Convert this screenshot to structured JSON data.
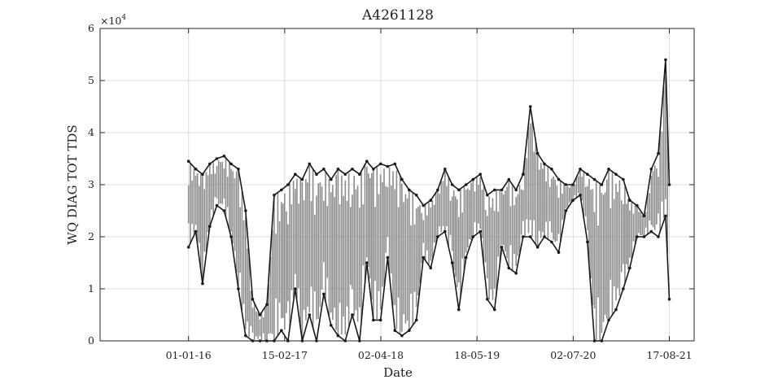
{
  "chart_data": {
    "type": "line",
    "title": "A4261128",
    "xlabel": "Date",
    "ylabel": "WQ DIAG TOT TDS",
    "y_multiplier_label": "×10",
    "y_multiplier_exp": "4",
    "x_tick_labels": [
      "01-01-16",
      "15-02-17",
      "02-04-18",
      "18-05-19",
      "02-07-20",
      "17-08-21"
    ],
    "y_tick_labels": [
      "0",
      "1",
      "2",
      "3",
      "4",
      "5",
      "6"
    ],
    "ylim": [
      0,
      60000
    ],
    "grid": true,
    "line_color": "#1a1a1a",
    "fill_color": "#8c8c8c",
    "series": [
      {
        "x": [
          "2016-01-01",
          "2016-02-01",
          "2016-03-01",
          "2016-04-01",
          "2016-05-01",
          "2016-06-01",
          "2016-07-01",
          "2016-08-01",
          "2016-09-01",
          "2016-10-01",
          "2016-11-01",
          "2016-12-01",
          "2017-01-01",
          "2017-02-01",
          "2017-03-01",
          "2017-04-01",
          "2017-05-01",
          "2017-06-01",
          "2017-07-01",
          "2017-08-01",
          "2017-09-01",
          "2017-10-01",
          "2017-11-01",
          "2017-12-01",
          "2018-01-01",
          "2018-02-01",
          "2018-03-01",
          "2018-04-01",
          "2018-05-01",
          "2018-06-01",
          "2018-07-01",
          "2018-08-01",
          "2018-09-01",
          "2018-10-01",
          "2018-11-01",
          "2018-12-01",
          "2019-01-01",
          "2019-02-01",
          "2019-03-01",
          "2019-04-01",
          "2019-05-01",
          "2019-06-01",
          "2019-07-01",
          "2019-08-01",
          "2019-09-01",
          "2019-10-01",
          "2019-11-01",
          "2019-12-01",
          "2020-01-01",
          "2020-02-01",
          "2020-03-01",
          "2020-04-01",
          "2020-05-01",
          "2020-06-01",
          "2020-07-01",
          "2020-08-01",
          "2020-09-01",
          "2020-10-01",
          "2020-11-01",
          "2020-12-01",
          "2021-01-01",
          "2021-02-01",
          "2021-03-01",
          "2021-04-01",
          "2021-05-01",
          "2021-06-01",
          "2021-07-01",
          "2021-08-01",
          "2021-08-17"
        ],
        "min": [
          18000,
          21000,
          11000,
          22000,
          26000,
          25000,
          20000,
          10000,
          1000,
          0,
          0,
          0,
          0,
          2000,
          0,
          10000,
          0,
          5000,
          0,
          9000,
          3000,
          1000,
          0,
          5000,
          0,
          15000,
          4000,
          4000,
          16000,
          2000,
          1000,
          2000,
          4000,
          16000,
          14000,
          20000,
          21000,
          15000,
          6000,
          16000,
          20000,
          21000,
          8000,
          6000,
          18000,
          14000,
          13000,
          20000,
          20000,
          18000,
          20000,
          19000,
          17000,
          25000,
          27000,
          28000,
          19000,
          0,
          0,
          4000,
          6000,
          10000,
          14000,
          20000,
          20000,
          21000,
          20000,
          24000,
          8000
        ],
        "max": [
          34500,
          33000,
          32000,
          34000,
          35000,
          35500,
          34000,
          33000,
          25000,
          8000,
          5000,
          7000,
          28000,
          29000,
          30000,
          32000,
          31000,
          34000,
          32000,
          33000,
          31000,
          33000,
          32000,
          33000,
          32000,
          34500,
          33000,
          34000,
          33500,
          34000,
          31000,
          29000,
          28000,
          26000,
          27000,
          29000,
          33000,
          30000,
          29000,
          30000,
          31000,
          32000,
          28000,
          29000,
          29000,
          31000,
          29000,
          32000,
          45000,
          36000,
          34000,
          33000,
          31000,
          30000,
          30000,
          33000,
          32000,
          31000,
          30000,
          33000,
          32000,
          31000,
          27000,
          26000,
          24000,
          33000,
          36000,
          54000,
          30000
        ]
      }
    ]
  }
}
